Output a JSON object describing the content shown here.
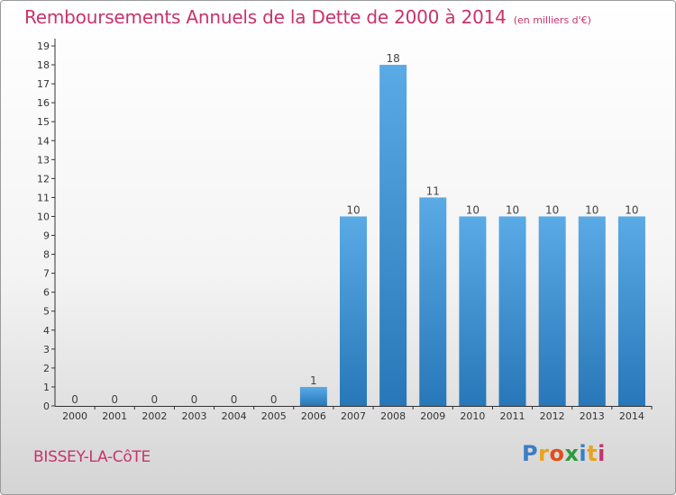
{
  "colors": {
    "title": "#c8336b",
    "bar_light": "#5aaae6",
    "bar_dark": "#2877b8",
    "axis": "#333333"
  },
  "chart_data": {
    "type": "bar",
    "title": "Remboursements Annuels de la Dette de 2000 à 2014",
    "subtitle": "(en milliers d'€)",
    "xlabel": "",
    "ylabel": "",
    "categories": [
      "2000",
      "2001",
      "2002",
      "2003",
      "2004",
      "2005",
      "2006",
      "2007",
      "2008",
      "2009",
      "2010",
      "2011",
      "2012",
      "2013",
      "2014"
    ],
    "values": [
      0,
      0,
      0,
      0,
      0,
      0,
      1,
      10,
      18,
      11,
      10,
      10,
      10,
      10,
      10
    ],
    "ylim": [
      0,
      19
    ],
    "yticks": [
      0,
      1,
      2,
      3,
      4,
      5,
      6,
      7,
      8,
      9,
      10,
      11,
      12,
      13,
      14,
      15,
      16,
      17,
      18,
      19
    ],
    "grid": false,
    "data_labels": true
  },
  "footer": {
    "place": "BISSEY-LA-CôTE",
    "logo": [
      "P",
      "r",
      "o",
      "x",
      "i",
      "t",
      "i"
    ]
  }
}
